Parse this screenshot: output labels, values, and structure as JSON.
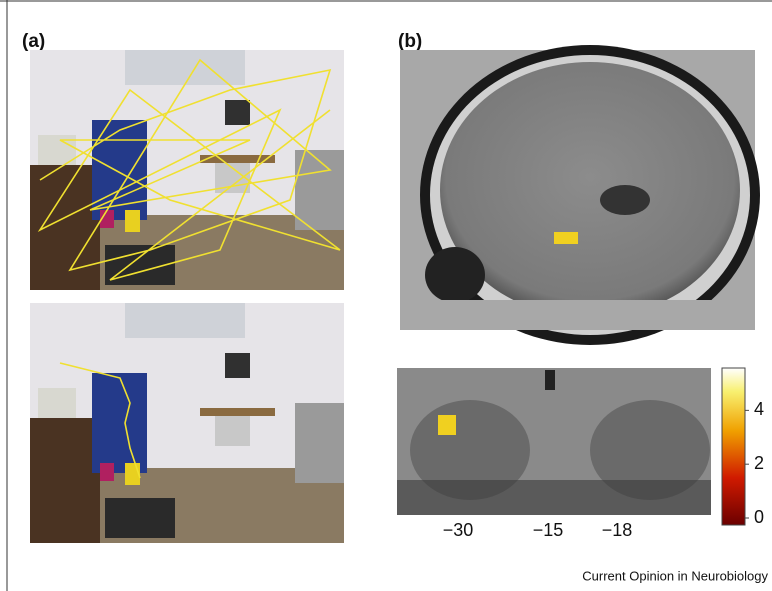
{
  "panel_a": {
    "label": "(a)"
  },
  "panel_b": {
    "label": "(b)",
    "coordinates": [
      "−30",
      "−15",
      "−18"
    ],
    "colorbar": {
      "lim": [
        0,
        5.5
      ],
      "ticks": [
        0,
        2,
        4
      ]
    }
  },
  "footer": "Current Opinion in Neurobiology"
}
